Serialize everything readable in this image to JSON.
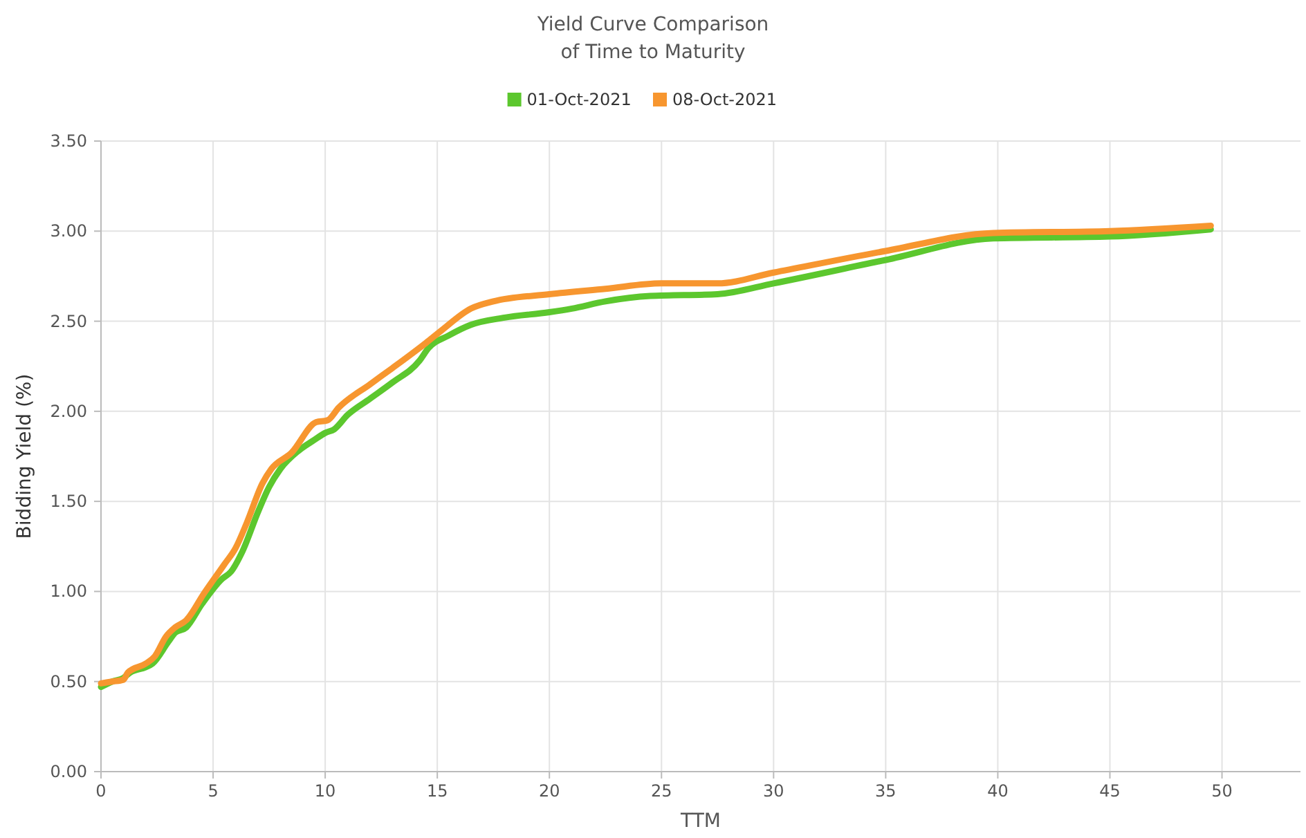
{
  "chart_data": {
    "type": "line",
    "title": "Yield Curve Comparison\nof Time to Maturity",
    "xlabel": "TTM",
    "ylabel": "Bidding Yield (%)",
    "xlim": [
      0,
      53.5
    ],
    "xticks": [
      0,
      5,
      10,
      15,
      20,
      25,
      30,
      35,
      40,
      45,
      50
    ],
    "ylim": [
      0,
      3.5
    ],
    "yticks": [
      {
        "value": 0,
        "label": "0.00"
      },
      {
        "value": 0.5,
        "label": "0.50"
      },
      {
        "value": 1,
        "label": "1.00"
      },
      {
        "value": 1.5,
        "label": "1.50"
      },
      {
        "value": 2,
        "label": "2.00"
      },
      {
        "value": 2.5,
        "label": "2.50"
      },
      {
        "value": 3,
        "label": "3.00"
      },
      {
        "value": 3.5,
        "label": "3.50"
      }
    ],
    "grid": true,
    "legend": "top",
    "marker": "none",
    "line_style": "solid",
    "series": [
      {
        "name": "01-Oct-2021",
        "color": "#5cc72e",
        "x": [
          0,
          0.5,
          1,
          1.3,
          2,
          2.3,
          3,
          3.3,
          3.8,
          4.5,
          5.4,
          5.8,
          6.3,
          7,
          7.5,
          8,
          8.8,
          9.5,
          10,
          10.4,
          11,
          12,
          13,
          14.2,
          14.6,
          15.5,
          16.5,
          18,
          20,
          21,
          22.5,
          24.5,
          27.5,
          30,
          35,
          39.8,
          45,
          49.5
        ],
        "values": [
          0.47,
          0.5,
          0.52,
          0.55,
          0.58,
          0.6,
          0.72,
          0.77,
          0.8,
          0.93,
          1.07,
          1.11,
          1.22,
          1.44,
          1.58,
          1.68,
          1.78,
          1.84,
          1.88,
          1.9,
          1.98,
          2.07,
          2.16,
          2.28,
          2.35,
          2.42,
          2.48,
          2.52,
          2.55,
          2.57,
          2.61,
          2.64,
          2.65,
          2.71,
          2.84,
          2.96,
          2.97,
          3.01
        ]
      },
      {
        "name": "08-Oct-2021",
        "color": "#f7962f",
        "x": [
          0,
          0.5,
          1,
          1.2,
          2,
          2.4,
          2.9,
          3.3,
          3.8,
          4.6,
          5.5,
          6,
          6.5,
          7.2,
          7.6,
          8.5,
          9.6,
          10.1,
          10.6,
          12,
          13,
          14.5,
          15.2,
          16.5,
          17.5,
          20,
          22.5,
          25,
          27.5,
          30,
          35,
          39.8,
          45,
          49.5
        ],
        "values": [
          0.49,
          0.5,
          0.51,
          0.55,
          0.6,
          0.64,
          0.75,
          0.8,
          0.84,
          0.99,
          1.15,
          1.24,
          1.38,
          1.6,
          1.68,
          1.77,
          1.94,
          1.95,
          2.02,
          2.15,
          2.24,
          2.38,
          2.45,
          2.57,
          2.61,
          2.65,
          2.68,
          2.71,
          2.71,
          2.77,
          2.89,
          2.99,
          3.0,
          3.03
        ]
      }
    ]
  }
}
